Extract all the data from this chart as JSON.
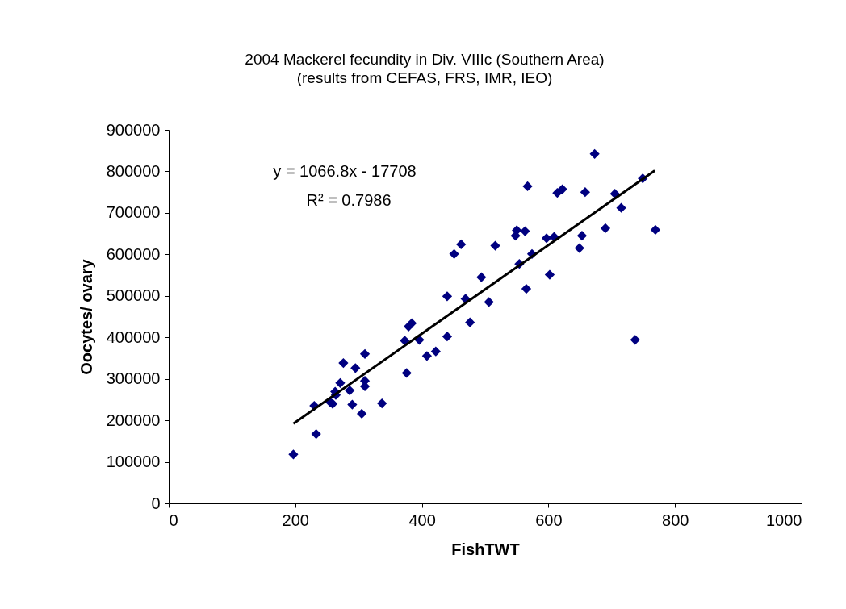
{
  "chart_data": {
    "type": "scatter",
    "title": "2004 Mackerel fecundity in Div. VIIIc (Southern Area)",
    "subtitle": "(results from CEFAS, FRS, IMR, IEO)",
    "xlabel": "FishTWT",
    "ylabel": "Oocytes/ ovary",
    "xlim": [
      0,
      1000
    ],
    "xticks": [
      0,
      200,
      400,
      600,
      800,
      1000
    ],
    "ylim": [
      0,
      900000
    ],
    "yticks": [
      0,
      100000,
      200000,
      300000,
      400000,
      500000,
      600000,
      700000,
      800000,
      900000
    ],
    "grid": false,
    "annotations": [
      "y = 1066.8x - 17708",
      "R² = 0.7986"
    ],
    "series": [
      {
        "marker": "diamond",
        "color": "#000080",
        "x": [
          197,
          233,
          230,
          255,
          259,
          263,
          264,
          271,
          276,
          286,
          295,
          290,
          305,
          310,
          310,
          310,
          337,
          373,
          376,
          379,
          384,
          396,
          408,
          422,
          440,
          440,
          451,
          462,
          469,
          476,
          494,
          506,
          516,
          548,
          550,
          554,
          563,
          565,
          567,
          574,
          597,
          602,
          609,
          614,
          622,
          649,
          653,
          658,
          673,
          690,
          705,
          715,
          737,
          749,
          769
        ],
        "values": [
          118000,
          167000,
          235000,
          244000,
          240000,
          269000,
          261000,
          290000,
          338000,
          272000,
          326000,
          238000,
          216000,
          360000,
          295000,
          282000,
          241000,
          392000,
          314000,
          426000,
          434000,
          394000,
          355000,
          366000,
          402000,
          499000,
          601000,
          624000,
          493000,
          436000,
          545000,
          485000,
          621000,
          645000,
          658000,
          577000,
          656000,
          517000,
          764000,
          601000,
          639000,
          551000,
          642000,
          748000,
          757000,
          615000,
          645000,
          750000,
          842000,
          663000,
          746000,
          712000,
          394000,
          783000,
          659000
        ]
      },
      {
        "type": "line",
        "marker": "none",
        "color": "#000000",
        "line_style": "solid",
        "x": [
          197,
          768
        ],
        "values": [
          192000,
          802000
        ]
      }
    ]
  }
}
